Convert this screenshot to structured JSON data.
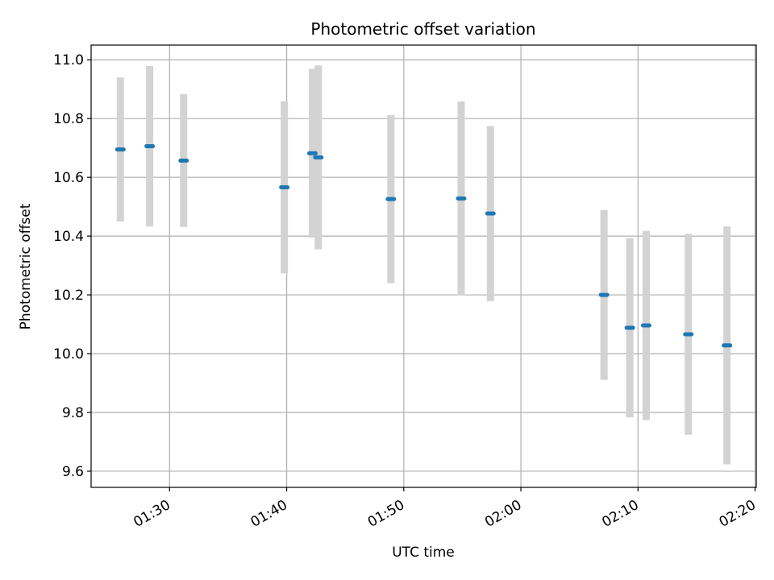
{
  "chart_data": {
    "type": "scatter",
    "title": "Photometric offset variation",
    "xlabel": "UTC time",
    "ylabel": "Photometric offset",
    "x_ticks": [
      "01:30",
      "01:40",
      "01:50",
      "02:00",
      "02:10",
      "02:20"
    ],
    "y_ticks": [
      "9.6",
      "9.8",
      "10.0",
      "10.2",
      "10.4",
      "10.6",
      "10.8",
      "11.0"
    ],
    "xlim": [
      "01:23:18",
      "02:20:06"
    ],
    "ylim": [
      9.545,
      11.05
    ],
    "grid": true,
    "errorbar_color": "#d3d3d3",
    "marker_color": "#1f77b4",
    "series": [
      {
        "points": [
          {
            "time": "01:25:48",
            "y": 10.695,
            "yerr": 0.245
          },
          {
            "time": "01:28:18",
            "y": 10.706,
            "yerr": 0.273
          },
          {
            "time": "01:31:12",
            "y": 10.657,
            "yerr": 0.226
          },
          {
            "time": "01:39:48",
            "y": 10.566,
            "yerr": 0.293
          },
          {
            "time": "01:42:12",
            "y": 10.682,
            "yerr": 0.287
          },
          {
            "time": "01:42:42",
            "y": 10.668,
            "yerr": 0.313
          },
          {
            "time": "01:48:54",
            "y": 10.526,
            "yerr": 0.286
          },
          {
            "time": "01:54:54",
            "y": 10.528,
            "yerr": 0.33
          },
          {
            "time": "01:57:24",
            "y": 10.477,
            "yerr": 0.298
          },
          {
            "time": "02:07:06",
            "y": 10.2,
            "yerr": 0.289
          },
          {
            "time": "02:09:18",
            "y": 10.088,
            "yerr": 0.305
          },
          {
            "time": "02:10:42",
            "y": 10.096,
            "yerr": 0.322
          },
          {
            "time": "02:14:18",
            "y": 10.066,
            "yerr": 0.342
          },
          {
            "time": "02:17:36",
            "y": 10.028,
            "yerr": 0.405
          }
        ]
      }
    ]
  }
}
